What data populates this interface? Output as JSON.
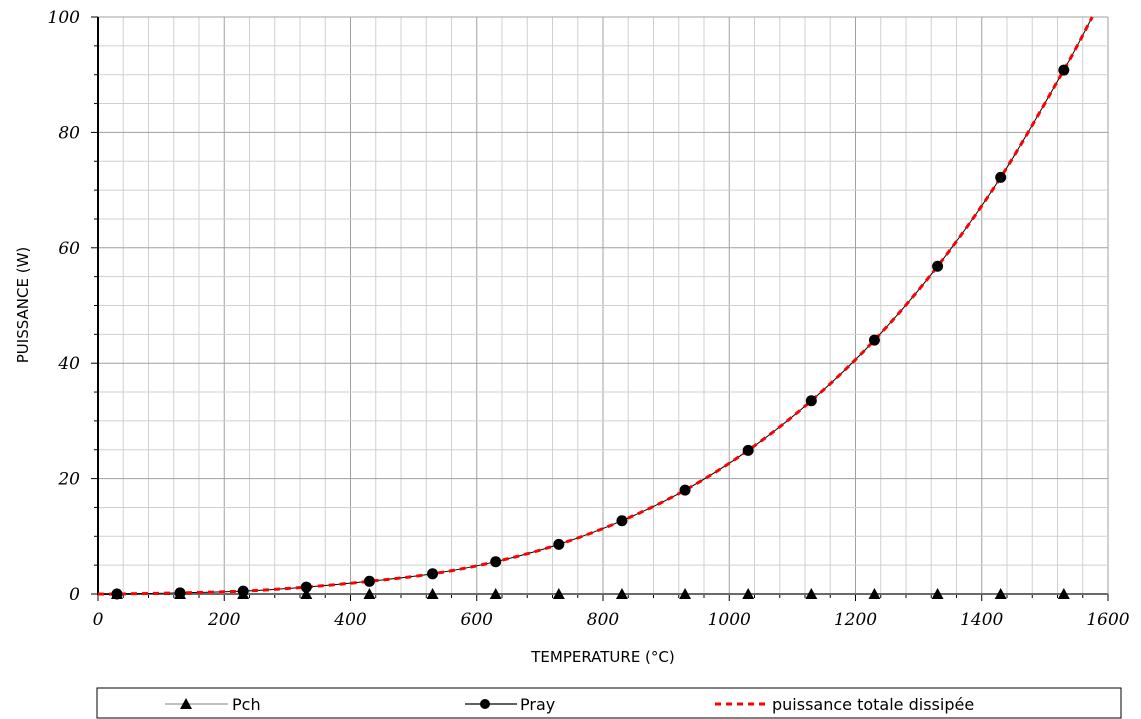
{
  "chart_data": {
    "type": "line",
    "title": "",
    "xlabel": "TEMPERATURE (°C)",
    "ylabel": "PUISSANCE (W)",
    "xlim": [
      0,
      1600
    ],
    "ylim": [
      0,
      100
    ],
    "x_ticks": [
      "0",
      "200",
      "400",
      "600",
      "800",
      "1000",
      "1200",
      "1400",
      "1600"
    ],
    "y_ticks": [
      "0",
      "20",
      "40",
      "60",
      "80",
      "100"
    ],
    "grid": true,
    "legend_position": "bottom",
    "series": [
      {
        "name": "Pch",
        "marker": "triangle",
        "line_color": "#aaaaaa",
        "x": [
          30,
          130,
          230,
          330,
          430,
          530,
          630,
          730,
          830,
          930,
          1030,
          1130,
          1230,
          1330,
          1430,
          1530
        ],
        "values": [
          0,
          0,
          0,
          0,
          0,
          0,
          0,
          0,
          0,
          0,
          0,
          0,
          0,
          0,
          0,
          0
        ]
      },
      {
        "name": "Pray",
        "marker": "circle",
        "line_color": "#000000",
        "x": [
          30,
          130,
          230,
          330,
          430,
          530,
          630,
          730,
          830,
          930,
          1030,
          1130,
          1230,
          1330,
          1430,
          1530
        ],
        "values": [
          0,
          0.2,
          0.5,
          1.2,
          2.2,
          3.5,
          5.6,
          8.6,
          12.7,
          18.0,
          24.9,
          33.5,
          44.0,
          56.8,
          72.2,
          90.8
        ]
      },
      {
        "name": "puissance totale dissipée",
        "marker": "none",
        "line_color": "#ff0000",
        "dashed": true,
        "x": [
          30,
          130,
          230,
          330,
          430,
          530,
          630,
          730,
          830,
          930,
          1030,
          1130,
          1230,
          1330,
          1430,
          1530
        ],
        "values": [
          0,
          0.2,
          0.5,
          1.2,
          2.2,
          3.5,
          5.6,
          8.6,
          12.7,
          18.0,
          24.9,
          33.5,
          44.0,
          56.8,
          72.2,
          90.8
        ]
      }
    ]
  }
}
